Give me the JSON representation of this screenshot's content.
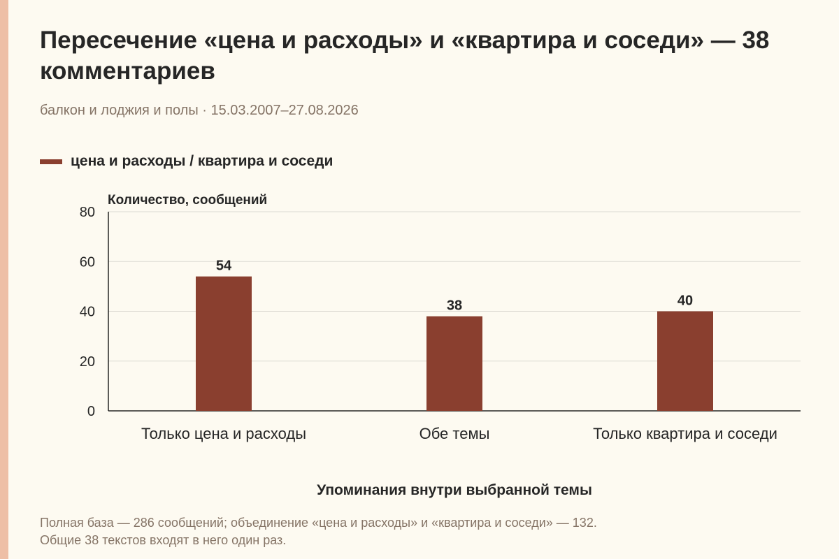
{
  "title": "Пересечение «цена и расходы» и «квартира и соседи» — 38 комментариев",
  "subtitle": "балкон и лоджия и полы · 15.03.2007–27.08.2026",
  "legend": {
    "label": "цена и расходы / квартира и соседи",
    "color": "#8a3f2f"
  },
  "footnote": {
    "line1": "Полная база — 286 сообщений; объединение «цена и расходы» и «квартира и соседи» — 132.",
    "line2": "Общие 38 текстов входят в него один раз."
  },
  "chart_data": {
    "type": "bar",
    "categories": [
      "Только цена и расходы",
      "Обе темы",
      "Только квартира и соседи"
    ],
    "series": [
      {
        "name": "цена и расходы / квартира и соседи",
        "values": [
          54,
          38,
          40
        ],
        "color": "#8a3f2f"
      }
    ],
    "ylabel": "Количество, сообщений",
    "xlabel": "Упоминания внутри выбранной темы",
    "ylim": [
      0,
      80
    ],
    "yticks": [
      0,
      20,
      40,
      60,
      80
    ],
    "grid": true,
    "data_labels": true
  }
}
